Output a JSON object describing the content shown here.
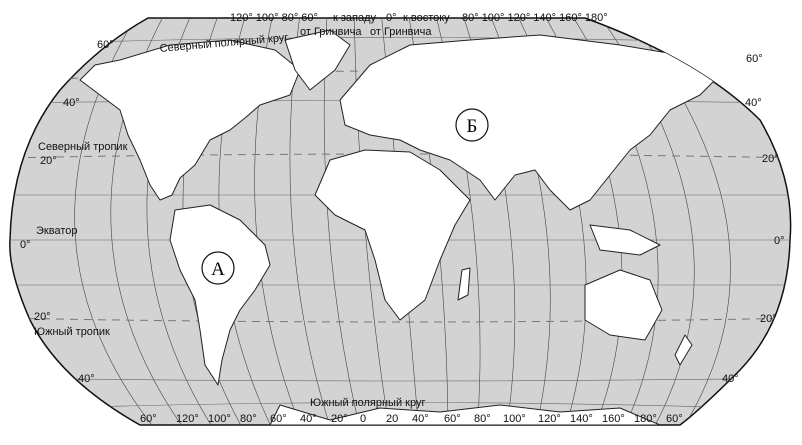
{
  "top_scale": {
    "west_degrees": "120° 100° 80° 60°",
    "west_label": "к западу",
    "west_sub": "от Гринвича",
    "zero": "0°",
    "east_label": "к востоку",
    "east_sub": "от Гринвича",
    "east_degrees": "80° 100° 120° 140° 160° 180°"
  },
  "bottom_scale": [
    "60°",
    "120°",
    "100°",
    "80°",
    "60°",
    "40°",
    "20°",
    "0",
    "20",
    "40°",
    "60°",
    "80°",
    "100°",
    "120°",
    "140°",
    "160°",
    "180°",
    "60°"
  ],
  "circles": {
    "north_polar": "Северный полярный круг",
    "south_polar": "Южный полярный круг",
    "north_tropic": "Северный тропик",
    "south_tropic": "Южный тропик",
    "equator": "Экватор"
  },
  "latitude_labels": {
    "left": [
      "60°",
      "40°",
      "20°",
      "0°",
      "20°",
      "40°"
    ],
    "right": [
      "60°",
      "40°",
      "20°",
      "0°",
      "20°",
      "40°"
    ]
  },
  "markers": {
    "a": "А",
    "b": "Б"
  },
  "colors": {
    "ocean": "#d3d3d3",
    "land": "#ffffff",
    "outline": "#222222"
  }
}
